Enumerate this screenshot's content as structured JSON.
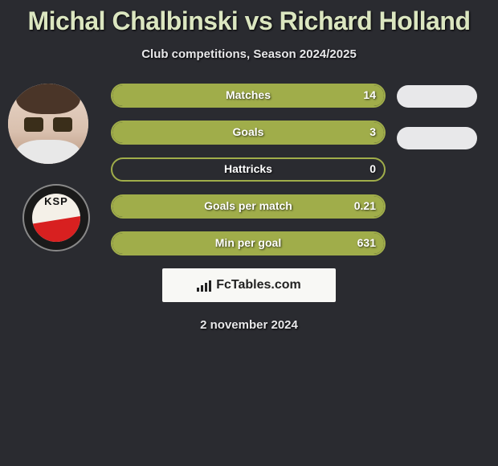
{
  "title": "Michal Chalbinski vs Richard Holland",
  "subtitle": "Club competitions, Season 2024/2025",
  "date": "2 november 2024",
  "brand": "FcTables.com",
  "club_abbrev": "KSP",
  "colors": {
    "accent": "#a0ad4a",
    "title": "#dbe6c0",
    "bg": "#2a2b30",
    "pill": "#e8e8ea",
    "text": "#e8e8ea"
  },
  "stats": [
    {
      "label": "Matches",
      "left_value": "14",
      "fill_pct": 100,
      "right_pill": true
    },
    {
      "label": "Goals",
      "left_value": "3",
      "fill_pct": 100,
      "right_pill": true
    },
    {
      "label": "Hattricks",
      "left_value": "0",
      "fill_pct": 0,
      "right_pill": false
    },
    {
      "label": "Goals per match",
      "left_value": "0.21",
      "fill_pct": 100,
      "right_pill": false
    },
    {
      "label": "Min per goal",
      "left_value": "631",
      "fill_pct": 100,
      "right_pill": false
    }
  ]
}
